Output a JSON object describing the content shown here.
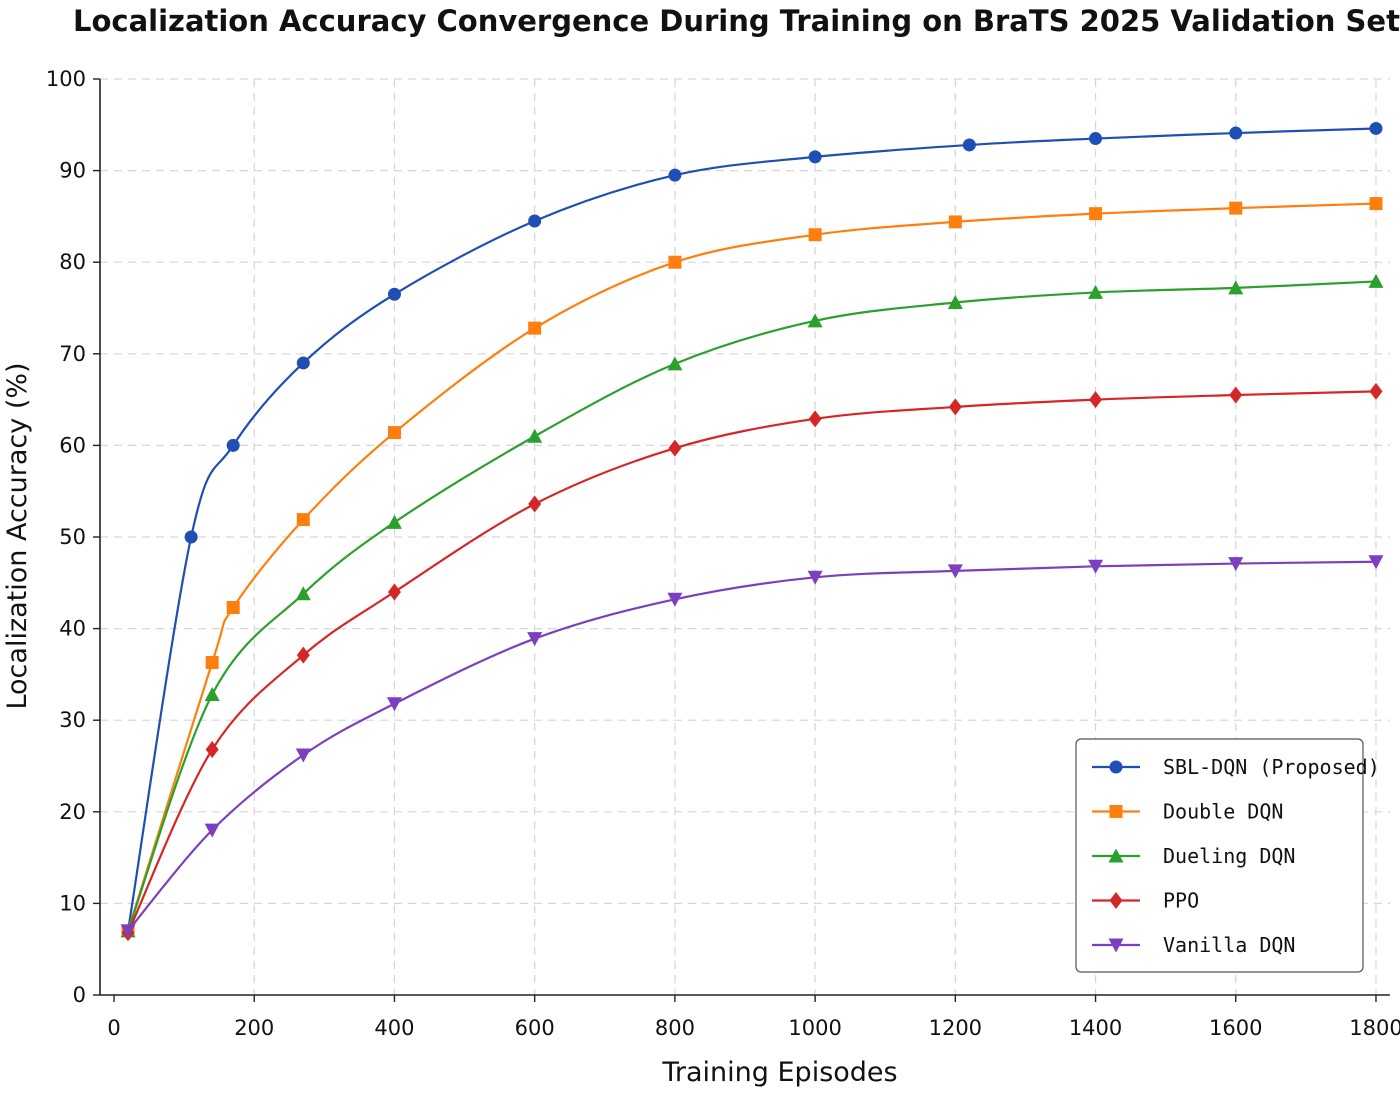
{
  "chart_data": {
    "type": "line",
    "title": "Localization Accuracy Convergence During Training on BraTS 2025 Validation Set.",
    "xlabel": "Training Episodes",
    "ylabel": "Localization Accuracy (%)",
    "xlim": [
      -20,
      1820
    ],
    "ylim": [
      0,
      100
    ],
    "xticks": [
      0,
      200,
      400,
      600,
      800,
      1000,
      1200,
      1400,
      1600,
      1800
    ],
    "yticks": [
      0,
      10,
      20,
      30,
      40,
      50,
      60,
      70,
      80,
      90,
      100
    ],
    "grid": true,
    "legend_position": "lower-right",
    "series": [
      {
        "name": "SBL-DQN (Proposed)",
        "color": "#1f4fb4",
        "marker": "circle",
        "x": [
          20,
          110,
          170,
          270,
          400,
          600,
          800,
          1000,
          1220,
          1400,
          1600,
          1800
        ],
        "y": [
          7,
          50,
          60,
          69,
          76.5,
          84.5,
          89.5,
          91.5,
          92.8,
          93.5,
          94.1,
          94.6
        ]
      },
      {
        "name": "Double DQN",
        "color": "#ff7f0e",
        "marker": "square",
        "x": [
          20,
          140,
          170,
          270,
          400,
          600,
          800,
          1000,
          1200,
          1400,
          1600,
          1800
        ],
        "y": [
          7,
          36.3,
          42.3,
          51.9,
          61.4,
          72.8,
          80,
          83,
          84.4,
          85.3,
          85.9,
          86.4
        ]
      },
      {
        "name": "Dueling DQN",
        "color": "#2ca02c",
        "marker": "triangle-up",
        "x": [
          20,
          140,
          270,
          400,
          600,
          800,
          1000,
          1200,
          1400,
          1600,
          1800
        ],
        "y": [
          7,
          32.8,
          43.8,
          51.6,
          61,
          68.9,
          73.6,
          75.6,
          76.7,
          77.2,
          77.9
        ]
      },
      {
        "name": "PPO",
        "color": "#d62728",
        "marker": "diamond",
        "x": [
          20,
          140,
          270,
          400,
          600,
          800,
          1000,
          1200,
          1400,
          1600,
          1800
        ],
        "y": [
          6.8,
          26.8,
          37.1,
          44,
          53.6,
          59.7,
          62.9,
          64.2,
          65,
          65.5,
          65.9
        ]
      },
      {
        "name": "Vanilla DQN",
        "color": "#7b3fbf",
        "marker": "triangle-down",
        "x": [
          20,
          140,
          270,
          400,
          600,
          800,
          1000,
          1200,
          1400,
          1600,
          1800
        ],
        "y": [
          7,
          18,
          26.2,
          31.8,
          38.9,
          43.2,
          45.6,
          46.3,
          46.8,
          47.1,
          47.3
        ]
      }
    ]
  }
}
